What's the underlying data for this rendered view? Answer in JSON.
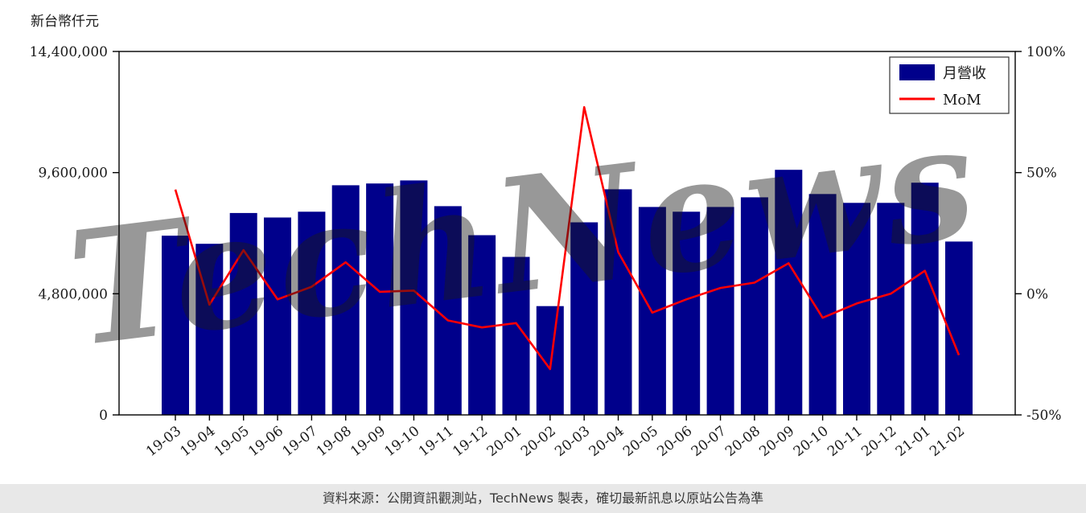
{
  "page": {
    "y_axis_title": "新台幣仟元",
    "watermark": "TechNews",
    "footer": "資料來源：公開資訊觀測站，TechNews 製表，確切最新訊息以原站公告為準"
  },
  "legend": {
    "bar_label": "月營收",
    "line_label": "MoM"
  },
  "colors": {
    "bar": "#00008B",
    "line": "#FF0000",
    "axis": "#000000",
    "watermark": "#E88A96",
    "footer_bg": "#E8E8E8",
    "footer_text": "#3A3A3A"
  },
  "chart_data": {
    "type": "bar",
    "title": "",
    "xlabel": "",
    "ylabel": "新台幣仟元",
    "categories": [
      "19-03",
      "19-04",
      "19-05",
      "19-06",
      "19-07",
      "19-08",
      "19-09",
      "19-10",
      "19-11",
      "19-12",
      "20-01",
      "20-02",
      "20-03",
      "20-04",
      "20-05",
      "20-06",
      "20-07",
      "20-08",
      "20-09",
      "20-10",
      "20-11",
      "20-12",
      "21-01",
      "21-02"
    ],
    "series": [
      {
        "name": "月營收",
        "type": "bar",
        "axis": "left",
        "values": [
          7100000,
          6780000,
          8000000,
          7820000,
          8050000,
          9100000,
          9170000,
          9290000,
          8270000,
          7120000,
          6260000,
          4310000,
          7630000,
          8940000,
          8240000,
          8050000,
          8240000,
          8620000,
          9710000,
          8750000,
          8400000,
          8400000,
          9200000,
          6870000
        ]
      },
      {
        "name": "MoM",
        "type": "line",
        "axis": "right",
        "values": [
          43,
          -4.5,
          18,
          -2.3,
          2.9,
          13,
          0.8,
          1.3,
          -11,
          -13.9,
          -12.1,
          -31.1,
          77,
          17.2,
          -7.8,
          -2.3,
          2.4,
          4.6,
          12.6,
          -9.9,
          -4.0,
          0.0,
          9.5,
          -25.3
        ]
      }
    ],
    "left_axis": {
      "min": 0,
      "max": 14400000,
      "tick_values": [
        0,
        4800000,
        9600000,
        14400000
      ],
      "tick_labels": [
        "0",
        "4,800,000",
        "9,600,000",
        "14,400,000"
      ]
    },
    "right_axis": {
      "min": -50,
      "max": 100,
      "tick_values": [
        -50,
        0,
        50,
        100
      ],
      "tick_labels": [
        "-50%",
        "0%",
        "50%",
        "100%"
      ]
    },
    "grid": false,
    "legend_position": "top-right"
  }
}
